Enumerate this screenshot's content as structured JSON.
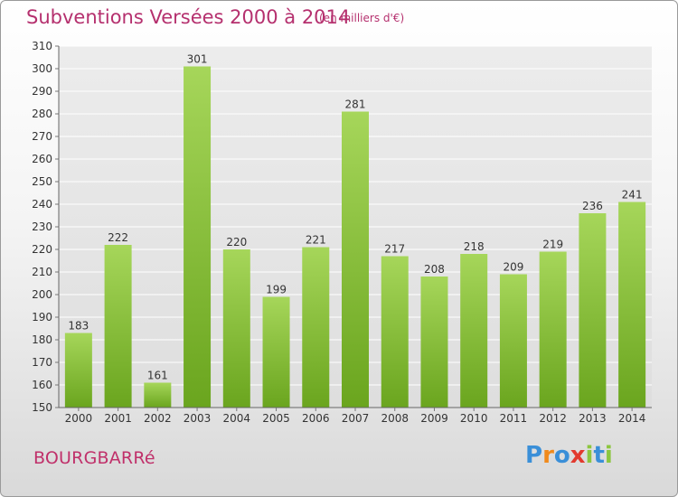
{
  "header": {
    "title": "Subventions Versées 2000 à 2014",
    "unit_note": "(en milliers d'€)"
  },
  "footer": {
    "place": "BOURGBARRé",
    "logo_letters": [
      {
        "char": "P",
        "color": "#3a8fd8"
      },
      {
        "char": "r",
        "color": "#f08a1c"
      },
      {
        "char": "o",
        "color": "#3a8fd8"
      },
      {
        "char": "x",
        "color": "#e23a2e"
      },
      {
        "char": "i",
        "color": "#8cc63f"
      },
      {
        "char": "t",
        "color": "#3a8fd8"
      },
      {
        "char": "i",
        "color": "#8cc63f"
      }
    ]
  },
  "chart_data": {
    "type": "bar",
    "categories": [
      "2000",
      "2001",
      "2002",
      "2003",
      "2004",
      "2005",
      "2006",
      "2007",
      "2008",
      "2009",
      "2010",
      "2011",
      "2012",
      "2013",
      "2014"
    ],
    "values": [
      183,
      222,
      161,
      301,
      220,
      199,
      221,
      281,
      217,
      208,
      218,
      209,
      219,
      236,
      241
    ],
    "ylim": [
      150,
      310
    ],
    "yticks": [
      150,
      160,
      170,
      180,
      190,
      200,
      210,
      220,
      230,
      240,
      250,
      260,
      270,
      280,
      290,
      300,
      310
    ],
    "grid": true,
    "bar_color_top": "#a6d65a",
    "bar_color_bottom": "#6aa51e",
    "title": "Subventions Versées 2000 à 2014",
    "ylabel": "(en milliers d'€)",
    "xlabel": ""
  }
}
